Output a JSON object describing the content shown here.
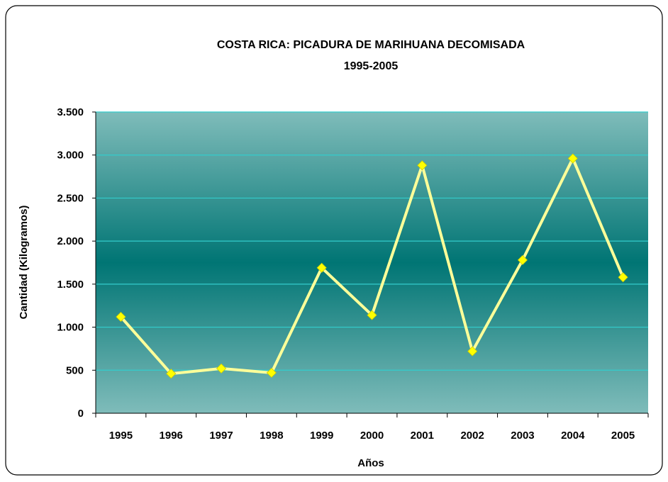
{
  "chart_data": {
    "type": "line",
    "title": "COSTA RICA: PICADURA DE MARIHUANA DECOMISADA",
    "subtitle": "1995-2005",
    "xlabel": "Años",
    "ylabel": "Cantidad (Kilogramos)",
    "categories": [
      "1995",
      "1996",
      "1997",
      "1998",
      "1999",
      "2000",
      "2001",
      "2002",
      "2003",
      "2004",
      "2005"
    ],
    "series": [
      {
        "values": [
          1120,
          460,
          520,
          470,
          1690,
          1140,
          2880,
          720,
          1780,
          2960,
          1580
        ]
      }
    ],
    "ylim": [
      0,
      3500
    ],
    "yticks": [
      0,
      500,
      1000,
      1500,
      2000,
      2500,
      3000,
      3500
    ],
    "ytick_labels": [
      "0",
      "500",
      "1.000",
      "1.500",
      "2.000",
      "2.500",
      "3.000",
      "3.500"
    ],
    "grid": true,
    "legend": "none",
    "colors": {
      "plot_bg_edge": "#7fbcba",
      "plot_bg_center": "#007574",
      "gridline": "#33cccc",
      "line": "#ffff99",
      "marker": "#ffff00",
      "marker_stroke": "#cccc00",
      "border": "#000000"
    }
  }
}
